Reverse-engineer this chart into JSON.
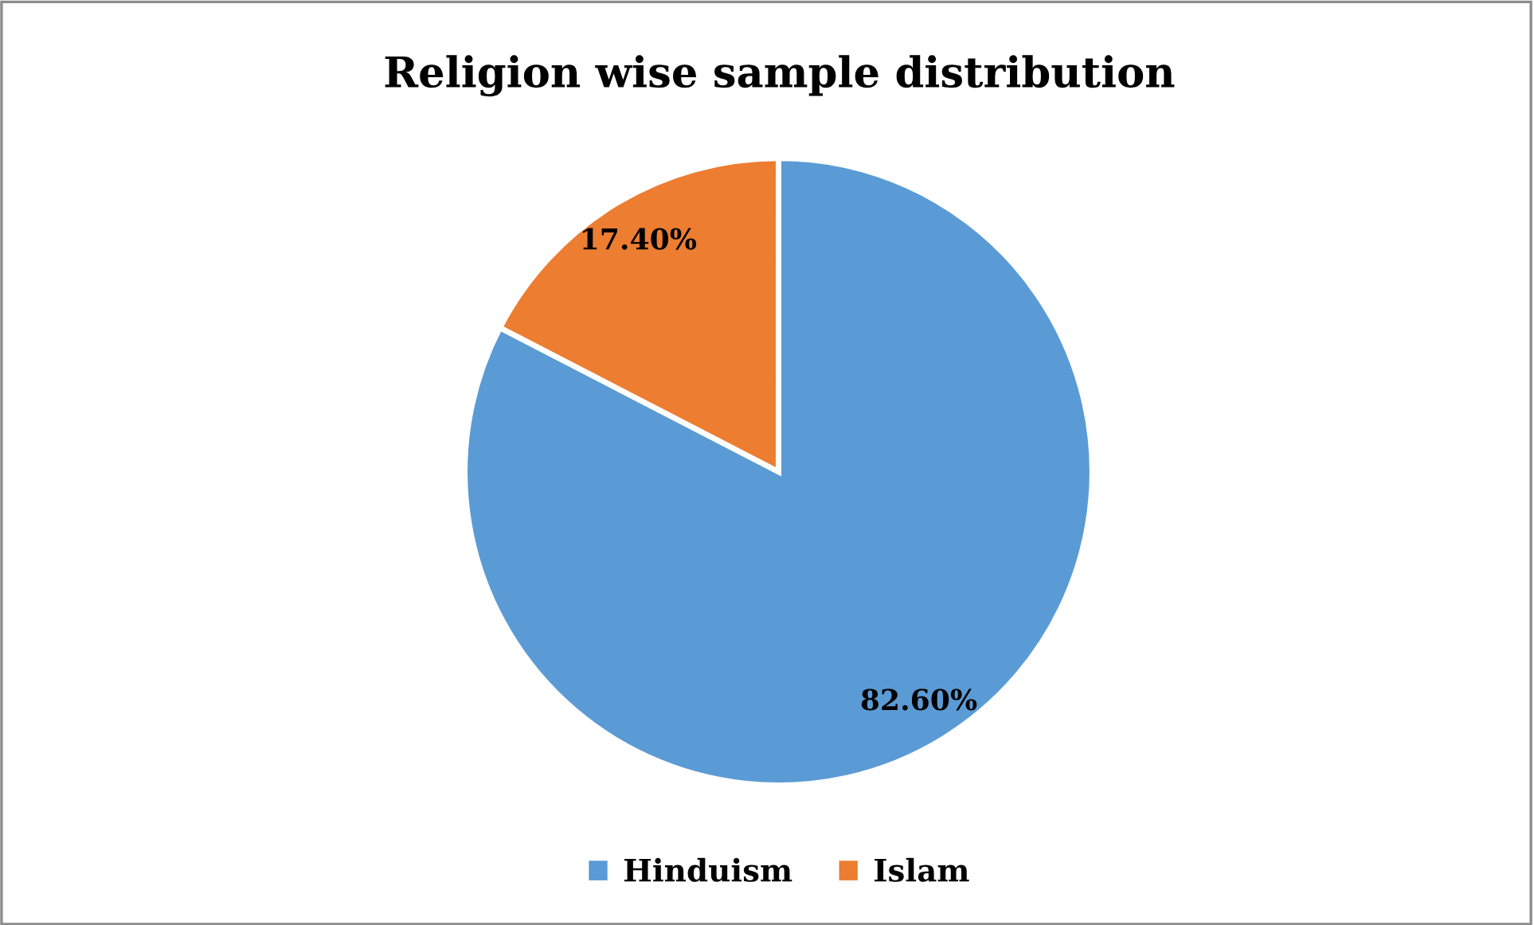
{
  "chart_data": {
    "type": "pie",
    "title": "Religion wise sample distribution",
    "categories": [
      "Hinduism",
      "Islam"
    ],
    "values": [
      82.6,
      17.4
    ],
    "colors": [
      "#5b9bd5",
      "#ed7d31"
    ],
    "value_labels": [
      "82.60%",
      "17.40%"
    ],
    "legend": "bottom"
  }
}
